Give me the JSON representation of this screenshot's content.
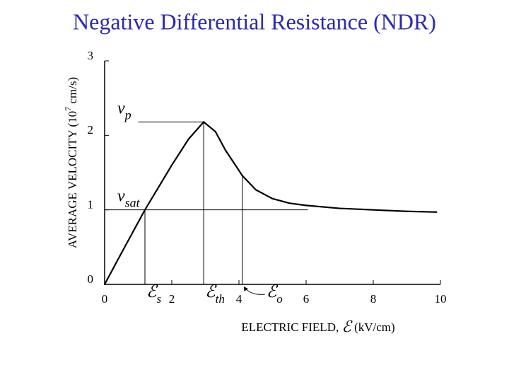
{
  "title": "Negative Differential Resistance (NDR)",
  "chart_data": {
    "type": "line",
    "y_label": {
      "text": "AVERAGE VELOCITY (10",
      "sup": "7",
      "tail": " cm/s)"
    },
    "x_label": {
      "text": "ELECTRIC FIELD, ",
      "symbol": "ℰ",
      "tail": " (kV/cm)"
    },
    "x": [
      0,
      0.5,
      1.2,
      2,
      2.5,
      2.95,
      3.3,
      3.6,
      4.1,
      4.5,
      5,
      5.5,
      6,
      7,
      8,
      9,
      9.9
    ],
    "values": [
      0,
      0.42,
      1.0,
      1.6,
      1.95,
      2.18,
      2.05,
      1.8,
      1.46,
      1.27,
      1.15,
      1.09,
      1.06,
      1.02,
      1.0,
      0.98,
      0.97
    ],
    "color": "#000000",
    "xlim": [
      0,
      10
    ],
    "xticks": [
      0,
      2,
      4,
      6,
      8,
      10
    ],
    "ylim": [
      0,
      3
    ],
    "yticks": [
      0,
      1,
      2,
      3
    ],
    "levels": [
      {
        "text": "v",
        "sub": "p",
        "y": 2.18,
        "from": 1.0,
        "to": 2.95
      },
      {
        "text": "v",
        "sub": "sat",
        "y": 1.0,
        "from": 0,
        "to": 6.05
      }
    ],
    "fields": [
      {
        "text": "ℰ",
        "sub": "s",
        "x": 1.2,
        "top": 1.0
      },
      {
        "text": "ℰ",
        "sub": "th",
        "x": 2.95,
        "top": 2.18
      },
      {
        "text": "ℰ",
        "sub": "o",
        "x": 4.1,
        "top": 1.46
      }
    ]
  }
}
